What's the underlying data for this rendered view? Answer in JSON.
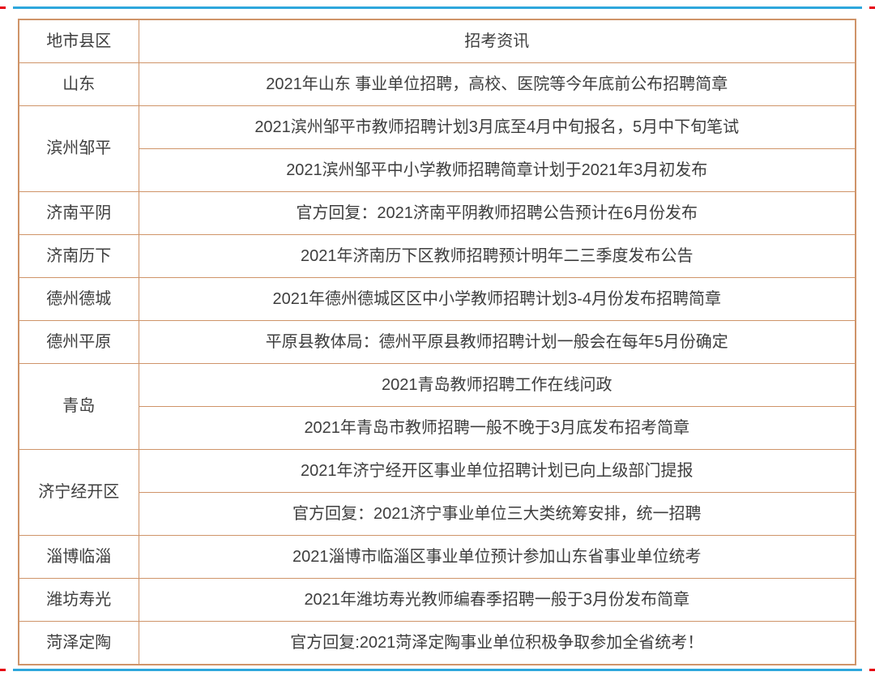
{
  "colors": {
    "table_border": "#cf9469",
    "info_text": "#fe0000",
    "region_text": "#3e3e3e",
    "frame_line_blue": "#2ea7dc",
    "frame_line_red_end": "#e60012"
  },
  "table": {
    "header": {
      "region": "地市县区",
      "info": "招考资讯"
    },
    "groups": [
      {
        "region": "山东",
        "items": [
          "2021年山东 事业单位招聘，高校、医院等今年底前公布招聘简章"
        ]
      },
      {
        "region": "滨州邹平",
        "items": [
          "2021滨州邹平市教师招聘计划3月底至4月中旬报名，5月中下旬笔试",
          "2021滨州邹平中小学教师招聘简章计划于2021年3月初发布"
        ]
      },
      {
        "region": "济南平阴",
        "items": [
          "官方回复：2021济南平阴教师招聘公告预计在6月份发布"
        ]
      },
      {
        "region": "济南历下",
        "items": [
          "2021年济南历下区教师招聘预计明年二三季度发布公告"
        ]
      },
      {
        "region": "德州德城",
        "items": [
          "2021年德州德城区区中小学教师招聘计划3-4月份发布招聘简章"
        ]
      },
      {
        "region": "德州平原",
        "items": [
          "平原县教体局：德州平原县教师招聘计划一般会在每年5月份确定"
        ]
      },
      {
        "region": "青岛",
        "items": [
          "2021青岛教师招聘工作在线问政",
          "2021年青岛市教师招聘一般不晚于3月底发布招考简章"
        ]
      },
      {
        "region": "济宁经开区",
        "items": [
          "2021年济宁经开区事业单位招聘计划已向上级部门提报",
          "官方回复：2021济宁事业单位三大类统筹安排，统一招聘"
        ]
      },
      {
        "region": "淄博临淄",
        "items": [
          "2021淄博市临淄区事业单位预计参加山东省事业单位统考"
        ]
      },
      {
        "region": "潍坊寿光",
        "items": [
          "2021年潍坊寿光教师编春季招聘一般于3月份发布简章"
        ]
      },
      {
        "region": "菏泽定陶",
        "items": [
          "官方回复:2021菏泽定陶事业单位积极争取参加全省统考！"
        ]
      }
    ]
  }
}
